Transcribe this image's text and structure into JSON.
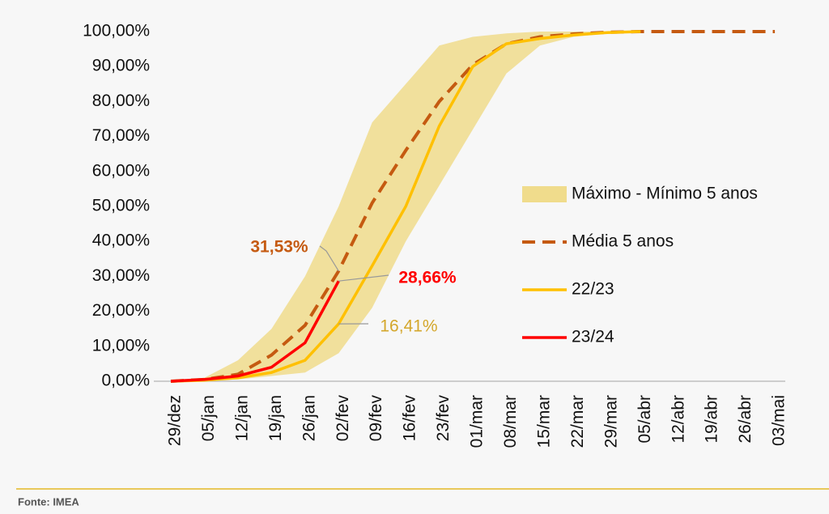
{
  "chart_data": {
    "type": "line",
    "categories": [
      "29/dez",
      "05/jan",
      "12/jan",
      "19/jan",
      "26/jan",
      "02/fev",
      "09/fev",
      "16/fev",
      "23/fev",
      "01/mar",
      "08/mar",
      "15/mar",
      "22/mar",
      "29/mar",
      "05/abr",
      "12/abr",
      "19/abr",
      "26/abr",
      "03/mai"
    ],
    "ylim": [
      0,
      100
    ],
    "yticks": [
      {
        "value": 0,
        "label": "0,00%"
      },
      {
        "value": 10,
        "label": "10,00%"
      },
      {
        "value": 20,
        "label": "20,00%"
      },
      {
        "value": 30,
        "label": "30,00%"
      },
      {
        "value": 40,
        "label": "40,00%"
      },
      {
        "value": 50,
        "label": "50,00%"
      },
      {
        "value": 60,
        "label": "60,00%"
      },
      {
        "value": 70,
        "label": "70,00%"
      },
      {
        "value": 80,
        "label": "80,00%"
      },
      {
        "value": 90,
        "label": "90,00%"
      },
      {
        "value": 100,
        "label": "100,00%"
      }
    ],
    "series": [
      {
        "name": "Máximo - Mínimo 5 anos",
        "kind": "band",
        "color": "#f0dc8c",
        "upper": [
          0,
          1,
          6,
          15,
          30,
          50,
          74,
          85,
          96,
          98.5,
          99.5,
          100,
          100,
          100,
          100,
          null,
          null,
          null,
          null
        ],
        "lower": [
          0,
          0.2,
          0.5,
          1.5,
          2.5,
          8,
          21,
          40,
          56,
          72,
          88,
          96,
          98.5,
          99.5,
          100,
          null,
          null,
          null,
          null
        ]
      },
      {
        "name": "Média 5 anos",
        "kind": "dashed",
        "color": "#c55a11",
        "values": [
          0,
          0.5,
          2,
          7.5,
          16,
          31.53,
          51,
          66,
          80,
          90.5,
          96.5,
          98.5,
          99.3,
          99.8,
          100,
          100,
          100,
          100,
          100
        ],
        "value_labels": [
          null,
          null,
          null,
          null,
          null,
          "31,53%",
          null,
          null,
          null,
          null,
          null,
          null,
          null,
          null,
          null,
          null,
          null,
          null,
          null
        ]
      },
      {
        "name": "22/23",
        "kind": "solid",
        "color": "#ffc000",
        "values": [
          0,
          0.3,
          1,
          2.5,
          6,
          16.41,
          33,
          50,
          73,
          90,
          96.5,
          98,
          99,
          99.7,
          100,
          null,
          null,
          null,
          null
        ],
        "value_labels": [
          null,
          null,
          null,
          null,
          null,
          "16,41%",
          null,
          null,
          null,
          null,
          null,
          null,
          null,
          null,
          null,
          null,
          null,
          null,
          null
        ]
      },
      {
        "name": "23/24",
        "kind": "solid",
        "color": "#ff0000",
        "values": [
          0,
          0.5,
          1.5,
          4,
          11,
          28.66,
          null,
          null,
          null,
          null,
          null,
          null,
          null,
          null,
          null,
          null,
          null,
          null,
          null
        ],
        "value_labels": [
          null,
          null,
          null,
          null,
          null,
          "28,66%",
          null,
          null,
          null,
          null,
          null,
          null,
          null,
          null,
          null,
          null,
          null,
          null,
          null
        ]
      }
    ],
    "source": "Fonte: IMEA"
  }
}
